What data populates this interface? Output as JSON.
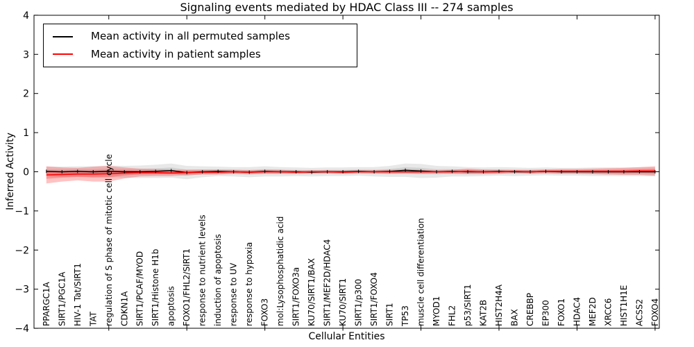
{
  "chart_data": {
    "type": "line",
    "title": "Signaling events mediated by HDAC Class III -- 274 samples",
    "xlabel": "Cellular Entities",
    "ylabel": "Inferred Activity",
    "ylim": [
      -4,
      4
    ],
    "yticks": [
      -4,
      -3,
      -2,
      -1,
      0,
      1,
      2,
      3,
      4
    ],
    "grid": false,
    "legend_position": "upper left",
    "x_major_tick_interval": 5,
    "categories": [
      "PPARGC1A",
      "SIRT1/PGC1A",
      "HIV-1 Tat/SIRT1",
      "TAT",
      "regulation of S phase of mitotic cell cycle",
      "CDKN1A",
      "SIRT1/PCAF/MYOD",
      "SIRT1/Histone H1b",
      "apoptosis",
      "FOXO1/FHL2/SIRT1",
      "response to nutrient levels",
      "induction of apoptosis",
      "response to UV",
      "response to hypoxia",
      "FOXO3",
      "mol:Lysophosphatidic acid",
      "SIRT1/FOXO3a",
      "KU70/SIRT1/BAX",
      "SIRT1/MEF2D/HDAC4",
      "KU70/SIRT1",
      "SIRT1/p300",
      "SIRT1/FOXO4",
      "SIRT1",
      "TP53",
      "muscle cell differentiation",
      "MYOD1",
      "FHL2",
      "p53/SIRT1",
      "KAT2B",
      "HIST2H4A",
      "BAX",
      "CREBBP",
      "EP300",
      "FOXO1",
      "HDAC4",
      "MEF2D",
      "XRCC6",
      "HIST1H1E",
      "ACSS2",
      "FOXO4"
    ],
    "series": [
      {
        "name": "Mean activity in all permuted samples",
        "color": "#000000",
        "band_color": "#000000",
        "band_opacity": 0.09,
        "marker": "|",
        "values": [
          0.01,
          0.0,
          0.01,
          0.0,
          0.01,
          0.0,
          0.0,
          0.01,
          0.03,
          -0.02,
          0.0,
          0.01,
          0.0,
          -0.01,
          0.01,
          0.0,
          0.0,
          -0.01,
          0.0,
          0.0,
          0.01,
          0.0,
          0.01,
          0.04,
          0.02,
          0.0,
          0.01,
          0.0,
          0.0,
          0.01,
          0.0,
          0.0,
          0.01,
          0.0,
          0.0,
          0.0,
          0.0,
          0.0,
          0.0,
          0.0
        ],
        "band_halfwidth": [
          0.12,
          0.13,
          0.13,
          0.14,
          0.15,
          0.15,
          0.16,
          0.17,
          0.18,
          0.17,
          0.14,
          0.12,
          0.12,
          0.13,
          0.13,
          0.12,
          0.11,
          0.11,
          0.11,
          0.11,
          0.11,
          0.12,
          0.14,
          0.17,
          0.18,
          0.15,
          0.13,
          0.12,
          0.11,
          0.11,
          0.11,
          0.1,
          0.1,
          0.1,
          0.1,
          0.11,
          0.11,
          0.11,
          0.11,
          0.12
        ]
      },
      {
        "name": "Mean activity in patient samples",
        "color": "#ff0000",
        "band_color": "#ff0000",
        "band_opacity": 0.24,
        "marker": "none",
        "values": [
          -0.08,
          -0.07,
          -0.06,
          -0.06,
          -0.05,
          -0.03,
          -0.02,
          -0.02,
          -0.03,
          -0.02,
          -0.01,
          -0.01,
          0.0,
          -0.01,
          0.0,
          0.0,
          -0.01,
          0.0,
          0.0,
          -0.01,
          0.0,
          0.0,
          0.0,
          0.0,
          0.0,
          0.0,
          0.0,
          0.01,
          0.0,
          0.0,
          0.01,
          0.0,
          0.01,
          0.01,
          0.01,
          0.01,
          0.01,
          0.01,
          0.02,
          0.02
        ],
        "band_halfwidth": [
          0.22,
          0.18,
          0.16,
          0.19,
          0.2,
          0.14,
          0.1,
          0.09,
          0.08,
          0.07,
          0.06,
          0.06,
          0.05,
          0.05,
          0.05,
          0.05,
          0.04,
          0.04,
          0.04,
          0.04,
          0.04,
          0.04,
          0.05,
          0.05,
          0.05,
          0.04,
          0.05,
          0.07,
          0.06,
          0.05,
          0.04,
          0.05,
          0.05,
          0.06,
          0.06,
          0.07,
          0.08,
          0.09,
          0.1,
          0.12
        ]
      }
    ]
  }
}
